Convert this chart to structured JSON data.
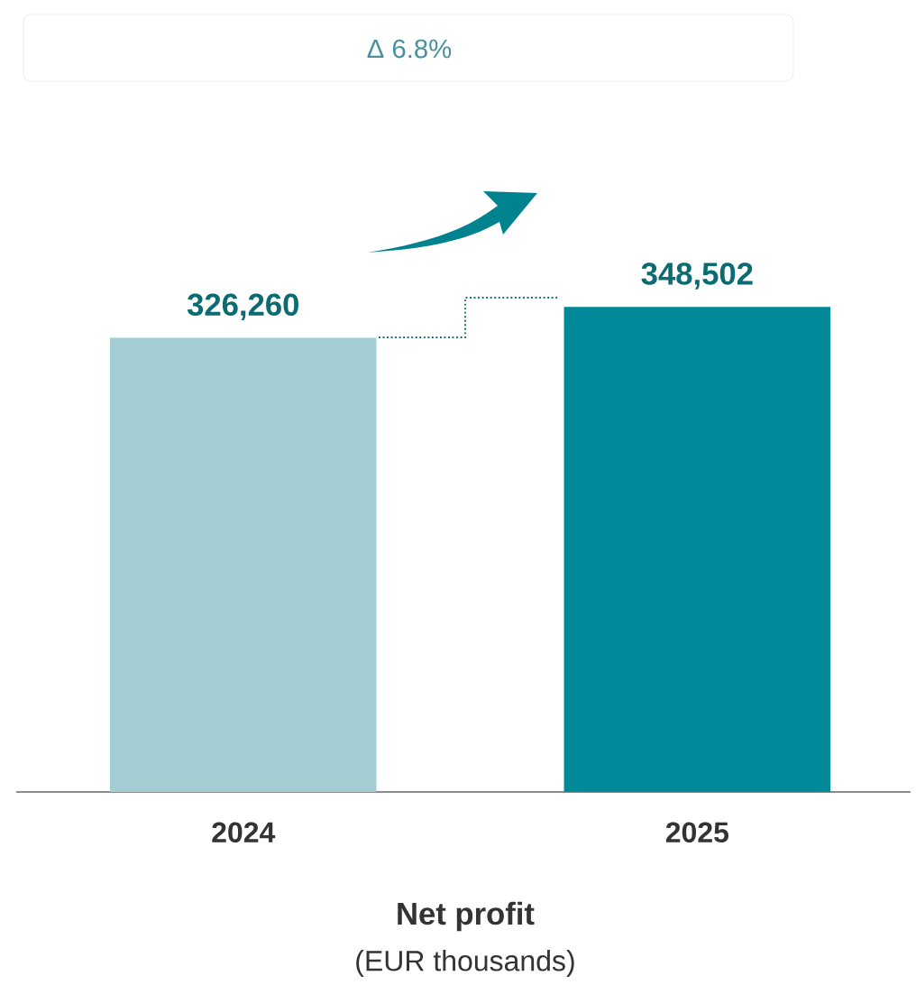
{
  "chart_data": {
    "type": "bar",
    "title": "Net profit",
    "subtitle": "(EUR thousands)",
    "annotations": [
      "Δ 6.8%"
    ],
    "categories": [
      "2024",
      "2025"
    ],
    "values": [
      326260,
      348502
    ],
    "colors": [
      "#a5cdd4",
      "#008a99"
    ],
    "value_labels": [
      "326,260",
      "348,502"
    ]
  }
}
